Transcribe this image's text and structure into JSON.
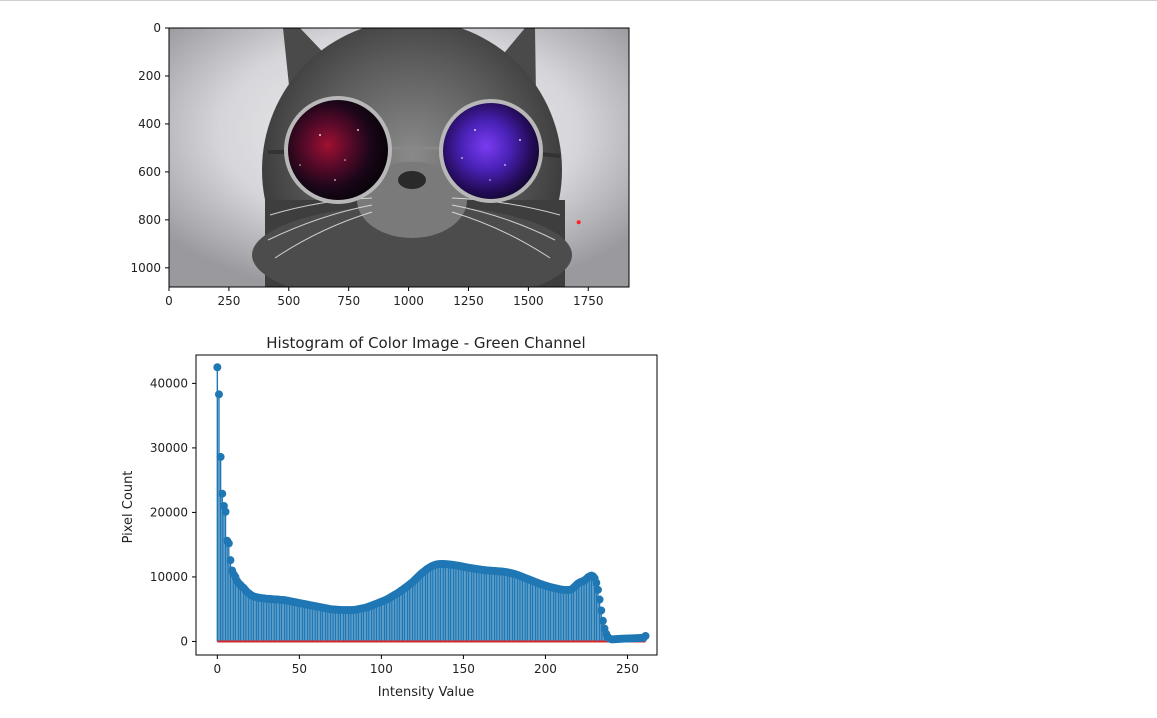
{
  "colors": {
    "series": "#1f77b4",
    "baseline": "#d62728",
    "marker": "#ff2222"
  },
  "chart_data": [
    {
      "type": "image",
      "image_content": "cat wearing round sunglasses with galaxy-reflecting lenses",
      "xlim": [
        0,
        1920
      ],
      "ylim": [
        1080,
        0
      ],
      "xticks": [
        0,
        250,
        500,
        750,
        1000,
        1250,
        1500,
        1750
      ],
      "yticks": [
        0,
        200,
        400,
        600,
        800,
        1000
      ],
      "annotations": [
        {
          "type": "point",
          "x": 1710,
          "y": 810,
          "color": "#ff2222"
        }
      ]
    },
    {
      "type": "stem",
      "title": "Histogram of Color Image - Green Channel",
      "xlabel": "Intensity Value",
      "ylabel": "Pixel Count",
      "xlim": [
        -13,
        268
      ],
      "ylim": [
        -2100,
        44400
      ],
      "xticks": [
        0,
        50,
        100,
        150,
        200,
        250
      ],
      "yticks": [
        0,
        10000,
        20000,
        30000,
        40000
      ],
      "series": [
        {
          "x_start": 0,
          "values": [
            42500,
            38300,
            28600,
            22900,
            21000,
            20100,
            15600,
            15200,
            12600,
            11000,
            10400,
            10000,
            9400,
            9000,
            8800,
            8500,
            8300,
            8000,
            7700,
            7500,
            7300,
            7100,
            7000,
            6900,
            6850,
            6800,
            6750,
            6700,
            6700,
            6650,
            6600,
            6600,
            6600,
            6550,
            6550,
            6500,
            6500,
            6500,
            6450,
            6450,
            6400,
            6400,
            6350,
            6300,
            6250,
            6200,
            6150,
            6100,
            6050,
            6000,
            5950,
            5900,
            5850,
            5800,
            5750,
            5700,
            5650,
            5600,
            5550,
            5500,
            5450,
            5400,
            5350,
            5300,
            5250,
            5200,
            5150,
            5100,
            5050,
            5000,
            4980,
            4960,
            4940,
            4920,
            4900,
            4880,
            4860,
            4850,
            4850,
            4850,
            4850,
            4850,
            4850,
            4870,
            4900,
            4950,
            5000,
            5050,
            5100,
            5150,
            5200,
            5280,
            5360,
            5450,
            5550,
            5650,
            5750,
            5850,
            5950,
            6050,
            6150,
            6250,
            6350,
            6470,
            6600,
            6750,
            6900,
            7050,
            7200,
            7350,
            7500,
            7680,
            7860,
            8040,
            8220,
            8400,
            8600,
            8800,
            9000,
            9200,
            9450,
            9700,
            9950,
            10200,
            10450,
            10650,
            10850,
            11050,
            11250,
            11400,
            11550,
            11700,
            11800,
            11880,
            11940,
            11980,
            12000,
            12000,
            12000,
            11980,
            11960,
            11940,
            11910,
            11880,
            11850,
            11820,
            11780,
            11730,
            11680,
            11630,
            11580,
            11530,
            11480,
            11430,
            11390,
            11350,
            11310,
            11270,
            11230,
            11190,
            11150,
            11110,
            11080,
            11050,
            11020,
            11000,
            10980,
            10960,
            10940,
            10920,
            10900,
            10880,
            10860,
            10840,
            10820,
            10790,
            10750,
            10700,
            10650,
            10600,
            10530,
            10460,
            10380,
            10300,
            10200,
            10100,
            10000,
            9900,
            9800,
            9700,
            9600,
            9500,
            9400,
            9300,
            9200,
            9100,
            9000,
            8900,
            8820,
            8740,
            8660,
            8580,
            8500,
            8430,
            8360,
            8300,
            8240,
            8180,
            8130,
            8080,
            8040,
            8000,
            7980,
            7970,
            7970,
            8000,
            8100,
            8300,
            8550,
            8800,
            9000,
            9150,
            9250,
            9350,
            9500,
            9700,
            9950,
            10100,
            10200,
            10100,
            9800,
            9100,
            8000,
            6500,
            4800,
            3200,
            2000,
            1200,
            700,
            450,
            350,
            330,
            340,
            360,
            380,
            400,
            410,
            420,
            430,
            440,
            450,
            460,
            470,
            480,
            490,
            500,
            510,
            520,
            530,
            550,
            600,
            850
          ]
        }
      ]
    }
  ]
}
